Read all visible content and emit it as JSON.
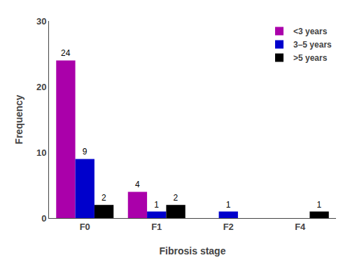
{
  "chart_data": {
    "type": "bar",
    "categories": [
      "F0",
      "F1",
      "F2",
      "F4"
    ],
    "series": [
      {
        "name": "<3 years",
        "color": "#AA00AA",
        "values": [
          24,
          4,
          0,
          0
        ],
        "value_labels": [
          "24",
          "4",
          null,
          null
        ]
      },
      {
        "name": "3–5 years",
        "color": "#0000CC",
        "values": [
          9,
          1,
          1,
          0
        ],
        "value_labels": [
          "9",
          "1",
          "1",
          null
        ]
      },
      {
        "name": ">5 years",
        "color": "#000000",
        "values": [
          2,
          2,
          0,
          1
        ],
        "value_labels": [
          "2",
          "2",
          null,
          "1"
        ]
      }
    ],
    "xlabel": "Fibrosis stage",
    "ylabel": "Frequency",
    "ylim": [
      0,
      30
    ],
    "yticks": [
      0,
      10,
      20,
      30
    ],
    "data_labels": true,
    "legend": "upper right",
    "grid": false
  }
}
